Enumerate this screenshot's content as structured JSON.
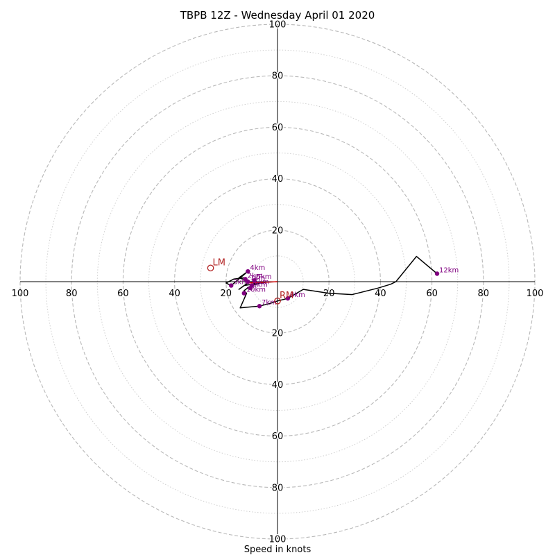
{
  "chart_data": {
    "type": "hodograph",
    "title": "TBPB 12Z - Wednesday April 01 2020",
    "xlabel": "Speed in knots",
    "range": [
      -100,
      100
    ],
    "ring_step": 10,
    "tick_labels": {
      "top": [
        "20",
        "40",
        "60",
        "80",
        "100"
      ],
      "bottom": [
        "20",
        "40",
        "60",
        "80",
        "100"
      ],
      "left": [
        "100",
        "80",
        "60",
        "40",
        "20"
      ],
      "right": [
        "20",
        "40",
        "60",
        "80",
        "100"
      ]
    },
    "hodograph_trace": [
      [
        0.0,
        0.0
      ],
      [
        -4,
        -0.2
      ],
      [
        -10,
        -1.0
      ],
      [
        -13,
        -1.5
      ],
      [
        -15,
        -3.0
      ],
      [
        -11.5,
        -0.5
      ],
      [
        -13,
        1.5
      ],
      [
        -17,
        1.0
      ],
      [
        -20,
        -0.5
      ],
      [
        -18,
        -1.5
      ],
      [
        -11.5,
        4.0
      ],
      [
        -15,
        1.5
      ],
      [
        -8,
        -1.0
      ],
      [
        -10,
        -1.5
      ],
      [
        -11,
        -2.0
      ],
      [
        -13,
        -3.5
      ],
      [
        -12,
        -4.5
      ],
      [
        -14.5,
        -10.2
      ],
      [
        -7,
        -9.5
      ],
      [
        -3,
        -8.5
      ],
      [
        0,
        -7.5
      ],
      [
        4,
        -6.5
      ],
      [
        10,
        -3.0
      ],
      [
        20,
        -4.5
      ],
      [
        29,
        -5.0
      ],
      [
        39,
        -2.5
      ],
      [
        44,
        -1.0
      ],
      [
        46,
        0.0
      ],
      [
        54,
        9.8
      ],
      [
        62,
        3.1
      ]
    ],
    "height_markers": [
      {
        "label": "1km",
        "u": -11.5,
        "v": 0.0
      },
      {
        "label": "2km",
        "u": -12.5,
        "v": 1.0
      },
      {
        "label": "3km",
        "u": -18,
        "v": -1.5
      },
      {
        "label": "4km",
        "u": -11.5,
        "v": 4.0
      },
      {
        "label": "5km",
        "u": -9,
        "v": 0.5
      },
      {
        "label": "6km",
        "u": -10,
        "v": -1.5
      },
      {
        "label": "7km",
        "u": -7,
        "v": -9.5
      },
      {
        "label": "8km",
        "u": 4,
        "v": -6.5
      },
      {
        "label": "9km",
        "u": -10.5,
        "v": -2.5
      },
      {
        "label": "10km",
        "u": -13,
        "v": -4.5
      },
      {
        "label": "12km",
        "u": 62,
        "v": 3.1
      }
    ],
    "storm_motion": [
      {
        "label": "LM",
        "u": -26,
        "v": 5.3
      },
      {
        "label": "RM",
        "u": 0,
        "v": -7.5
      }
    ],
    "mean_wind_vector": {
      "u": -11,
      "v": -0.5
    },
    "colors": {
      "trace": "#000000",
      "markers": "#800080",
      "storm_motion": "#b22222",
      "mean_wind": "#ff0000",
      "rings_major": "#b8b8b8",
      "rings_minor": "#cfcfcf",
      "axes": "#000000"
    },
    "grid": "polar rings, dashed major every 20 kt, dotted minor every 10 kt"
  }
}
